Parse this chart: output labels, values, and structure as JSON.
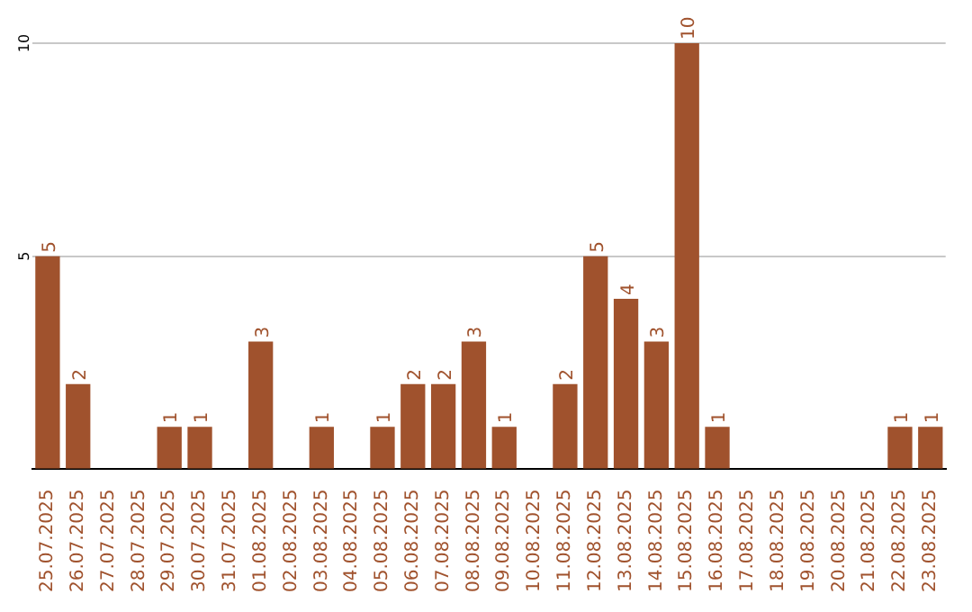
{
  "chart_data": {
    "type": "bar",
    "categories": [
      "25.07.2025",
      "26.07.2025",
      "27.07.2025",
      "28.07.2025",
      "29.07.2025",
      "30.07.2025",
      "31.07.2025",
      "01.08.2025",
      "02.08.2025",
      "03.08.2025",
      "04.08.2025",
      "05.08.2025",
      "06.08.2025",
      "07.08.2025",
      "08.08.2025",
      "09.08.2025",
      "10.08.2025",
      "11.08.2025",
      "12.08.2025",
      "13.08.2025",
      "14.08.2025",
      "15.08.2025",
      "16.08.2025",
      "17.08.2025",
      "18.08.2025",
      "19.08.2025",
      "20.08.2025",
      "21.08.2025",
      "22.08.2025",
      "23.08.2025"
    ],
    "values": [
      5,
      2,
      0,
      0,
      1,
      1,
      0,
      3,
      0,
      1,
      0,
      1,
      2,
      2,
      3,
      1,
      0,
      2,
      5,
      4,
      3,
      10,
      1,
      0,
      0,
      0,
      0,
      0,
      1,
      1
    ],
    "value_labels": [
      "5",
      "2",
      null,
      null,
      "1",
      "1",
      null,
      "3",
      null,
      "1",
      null,
      "1",
      "2",
      "2",
      "3",
      "1",
      null,
      "2",
      "5",
      "4",
      "3",
      "10",
      "1",
      null,
      null,
      null,
      null,
      null,
      "1",
      "1"
    ],
    "color": "#a0522d",
    "ylim": [
      0,
      10
    ],
    "yticks": [
      {
        "value": 0,
        "label": null
      },
      5,
      10
    ],
    "grid": "y",
    "legend": false
  }
}
